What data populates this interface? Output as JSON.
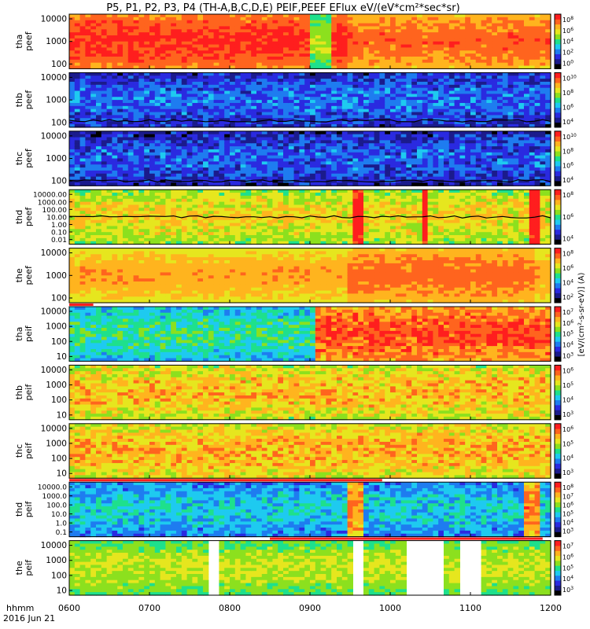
{
  "title": "P5, P1, P2, P3, P4 (TH-A,B,C,D,E) PEIF,PEEF EFlux eV/(eV*cm²*sec*sr)",
  "colorbar_unit": "[eV/(cm²-s-sr-eV)] (A)",
  "x_axis": {
    "label_line1": "hhmm",
    "label_line2": "2016 Jun 21",
    "ticks": [
      "0600",
      "0700",
      "0800",
      "0900",
      "1000",
      "1100",
      "1200"
    ],
    "range": [
      600,
      1200
    ]
  },
  "palette": [
    "#000000",
    "#1b1b8c",
    "#2a2ae0",
    "#1e7cf0",
    "#1ecaf0",
    "#1ee08c",
    "#8ce01e",
    "#e6e61e",
    "#ffb41e",
    "#ff641e",
    "#ff1e1e"
  ],
  "chart_data": [
    {
      "type": "heatmap",
      "name": "tha peef",
      "ylabel_a": "tha",
      "ylabel_b": "peef",
      "yticks": [
        "10000",
        "1000",
        "100"
      ],
      "yrange_log": [
        1,
        4.4
      ],
      "cbar_ticks": [
        "10^8",
        "10^6",
        "10^4",
        "10^2",
        "10^0"
      ],
      "base": 9.0,
      "amp": 0.6,
      "gaps": [],
      "line": null,
      "segments": [
        {
          "x0": 900,
          "x1": 925,
          "level": 5.5
        },
        {
          "x0": 925,
          "x1": 945,
          "level": 9.0
        },
        {
          "x0": 945,
          "x1": 1200,
          "level": 8.3
        }
      ],
      "red_bar": null
    },
    {
      "type": "heatmap",
      "name": "thb peef",
      "ylabel_a": "thb",
      "ylabel_b": "peef",
      "yticks": [
        "10000",
        "1000",
        "100"
      ],
      "yrange_log": [
        1,
        4.4
      ],
      "cbar_ticks": [
        "10^10",
        "10^8",
        "10^6",
        "10^4"
      ],
      "base": 2.0,
      "amp": 1.2,
      "gaps": [],
      "line": {
        "level_log": 1.4
      },
      "segments": [],
      "red_bar": null
    },
    {
      "type": "heatmap",
      "name": "thc peef",
      "ylabel_a": "thc",
      "ylabel_b": "peef",
      "yticks": [
        "10000",
        "1000",
        "100"
      ],
      "yrange_log": [
        1,
        4.4
      ],
      "cbar_ticks": [
        "10^10",
        "10^8",
        "10^6",
        "10^4"
      ],
      "base": 1.8,
      "amp": 1.2,
      "gaps": [],
      "line": {
        "level_log": 1.3
      },
      "segments": [],
      "red_bar": null
    },
    {
      "type": "heatmap",
      "name": "thd peef",
      "ylabel_a": "thd",
      "ylabel_b": "peef",
      "yticks": [
        "10000.00",
        "1000.00",
        "100.00",
        "10.00",
        "1.00",
        "0.10",
        "0.01"
      ],
      "yrange_log": [
        -2,
        4
      ],
      "cbar_ticks": [
        "10^8",
        "10^6",
        "10^4"
      ],
      "base": 6.5,
      "amp": 1.0,
      "gaps": [],
      "line": {
        "level_log": 1.0
      },
      "segments": [
        {
          "x0": 955,
          "x1": 965,
          "level": 10.0
        },
        {
          "x0": 1040,
          "x1": 1050,
          "level": 10.0
        },
        {
          "x0": 1175,
          "x1": 1185,
          "level": 10.0
        }
      ],
      "red_bar": null
    },
    {
      "type": "heatmap",
      "name": "the peef",
      "ylabel_a": "the",
      "ylabel_b": "peef",
      "yticks": [
        "10000",
        "1000",
        "100"
      ],
      "yrange_log": [
        1,
        4.4
      ],
      "cbar_ticks": [
        "10^8",
        "10^6",
        "10^4",
        "10^2"
      ],
      "base": 7.4,
      "amp": 0.5,
      "gaps": [],
      "line": null,
      "segments": [
        {
          "x0": 950,
          "x1": 1180,
          "level": 8.2
        }
      ],
      "red_bar": {
        "x0": 600,
        "x1": 630
      }
    },
    {
      "type": "heatmap",
      "name": "tha peif",
      "ylabel_a": "tha",
      "ylabel_b": "peif",
      "yticks": [
        "10000",
        "1000",
        "100",
        "10"
      ],
      "yrange_log": [
        0.7,
        4.4
      ],
      "cbar_ticks": [
        "10^7",
        "10^6",
        "10^5",
        "10^4",
        "10^3"
      ],
      "base": 4.2,
      "amp": 1.0,
      "gaps": [],
      "line": null,
      "segments": [
        {
          "x0": 910,
          "x1": 1200,
          "level": 8.6
        }
      ],
      "red_bar": null
    },
    {
      "type": "heatmap",
      "name": "thb peif",
      "ylabel_a": "thb",
      "ylabel_b": "peif",
      "yticks": [
        "10000",
        "1000",
        "100",
        "10"
      ],
      "yrange_log": [
        0.7,
        4.4
      ],
      "cbar_ticks": [
        "10^6",
        "10^5",
        "10^4",
        "10^3"
      ],
      "base": 7.0,
      "amp": 1.2,
      "gaps": [],
      "line": null,
      "segments": [],
      "red_bar": null
    },
    {
      "type": "heatmap",
      "name": "thc peif",
      "ylabel_a": "thc",
      "ylabel_b": "peif",
      "yticks": [
        "10000",
        "1000",
        "100",
        "10"
      ],
      "yrange_log": [
        0.7,
        4.4
      ],
      "cbar_ticks": [
        "10^6",
        "10^5",
        "10^4",
        "10^3"
      ],
      "base": 7.2,
      "amp": 1.1,
      "gaps": [],
      "line": null,
      "segments": [],
      "red_bar": {
        "x0": 600,
        "x1": 990
      }
    },
    {
      "type": "heatmap",
      "name": "thd peif",
      "ylabel_a": "thd",
      "ylabel_b": "peif",
      "yticks": [
        "10000.0",
        "1000.0",
        "100.0",
        "10.0",
        "1.0",
        "0.1"
      ],
      "yrange_log": [
        -1,
        4.2
      ],
      "cbar_ticks": [
        "10^8",
        "10^7",
        "10^6",
        "10^5",
        "10^4",
        "10^3"
      ],
      "base": 3.4,
      "amp": 1.0,
      "gaps": [],
      "line": null,
      "segments": [
        {
          "x0": 950,
          "x1": 970,
          "level": 8.0
        },
        {
          "x0": 1165,
          "x1": 1185,
          "level": 8.0
        }
      ],
      "red_bar": {
        "x0": 850,
        "x1": 1190
      }
    },
    {
      "type": "heatmap",
      "name": "the peif",
      "ylabel_a": "the",
      "ylabel_b": "peif",
      "yticks": [
        "10000",
        "1000",
        "100",
        "10"
      ],
      "yrange_log": [
        0.7,
        4.4
      ],
      "cbar_ticks": [
        "10^7",
        "10^6",
        "10^5",
        "10^4",
        "10^3"
      ],
      "base": 5.8,
      "amp": 0.7,
      "gaps": [
        {
          "x0": 775,
          "x1": 790
        },
        {
          "x0": 955,
          "x1": 970
        },
        {
          "x0": 1020,
          "x1": 1068
        },
        {
          "x0": 1085,
          "x1": 1115
        }
      ],
      "line": null,
      "segments": [],
      "red_bar": null
    }
  ]
}
